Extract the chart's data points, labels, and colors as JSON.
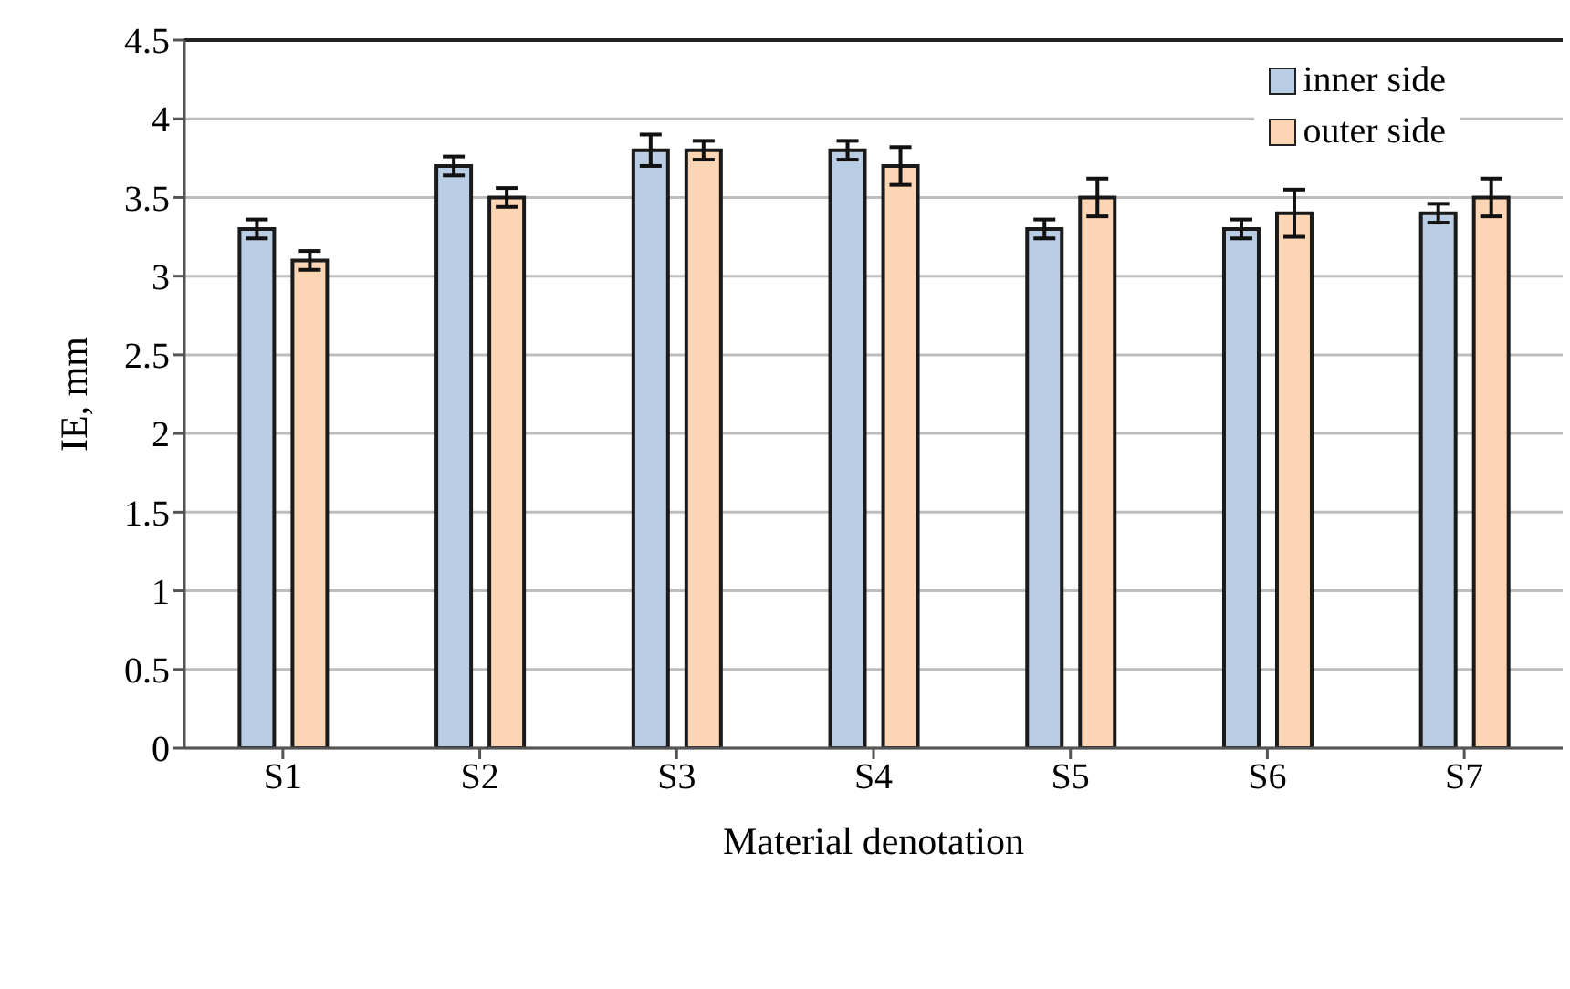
{
  "chart_data": {
    "type": "bar",
    "xlabel": "Material denotation",
    "ylabel": "IE, mm",
    "categories": [
      "S1",
      "S2",
      "S3",
      "S4",
      "S5",
      "S6",
      "S7"
    ],
    "series": [
      {
        "name": "inner side",
        "color": "#b9cde5",
        "values": [
          3.3,
          3.7,
          3.8,
          3.8,
          3.3,
          3.3,
          3.4
        ],
        "errors": [
          0.06,
          0.06,
          0.1,
          0.06,
          0.06,
          0.06,
          0.06
        ]
      },
      {
        "name": "outer side",
        "color": "#fcd5b5",
        "values": [
          3.1,
          3.5,
          3.8,
          3.7,
          3.5,
          3.4,
          3.5
        ],
        "errors": [
          0.06,
          0.06,
          0.06,
          0.12,
          0.12,
          0.15,
          0.12
        ]
      }
    ],
    "ylim": [
      0,
      4.5
    ],
    "yticks": [
      0,
      0.5,
      1,
      1.5,
      2,
      2.5,
      3,
      3.5,
      4,
      4.5
    ],
    "grid": "y",
    "legend": "top right"
  }
}
